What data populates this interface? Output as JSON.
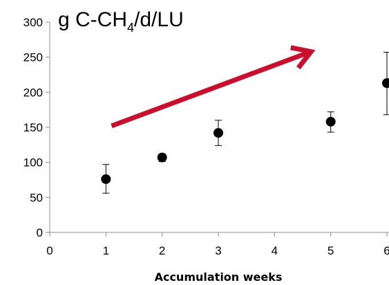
{
  "chart_data": {
    "type": "scatter",
    "title_main": "g C-CH",
    "title_sub": "4",
    "title_rest": "/d/LU",
    "xlabel": "Accumulation weeks",
    "ylabel": "",
    "xlim": [
      0,
      6
    ],
    "ylim": [
      0,
      300
    ],
    "xticks": [
      0,
      1,
      2,
      3,
      4,
      5,
      6
    ],
    "yticks": [
      0,
      50,
      100,
      150,
      200,
      250,
      300
    ],
    "grid": false,
    "legend": "none",
    "marker_color": "#000000",
    "arrow_color": "#c8102e",
    "points": [
      {
        "x": 1,
        "y": 76,
        "err_low": 56,
        "err_high": 97
      },
      {
        "x": 2,
        "y": 107,
        "err_low": 101,
        "err_high": 112
      },
      {
        "x": 3,
        "y": 142,
        "err_low": 124,
        "err_high": 160
      },
      {
        "x": 5,
        "y": 158,
        "err_low": 143,
        "err_high": 172
      },
      {
        "x": 6,
        "y": 213,
        "err_low": 168,
        "err_high": 257
      }
    ],
    "trend_arrow": {
      "from": {
        "x": 1.1,
        "y": 152
      },
      "to": {
        "x": 4.65,
        "y": 258
      }
    }
  }
}
